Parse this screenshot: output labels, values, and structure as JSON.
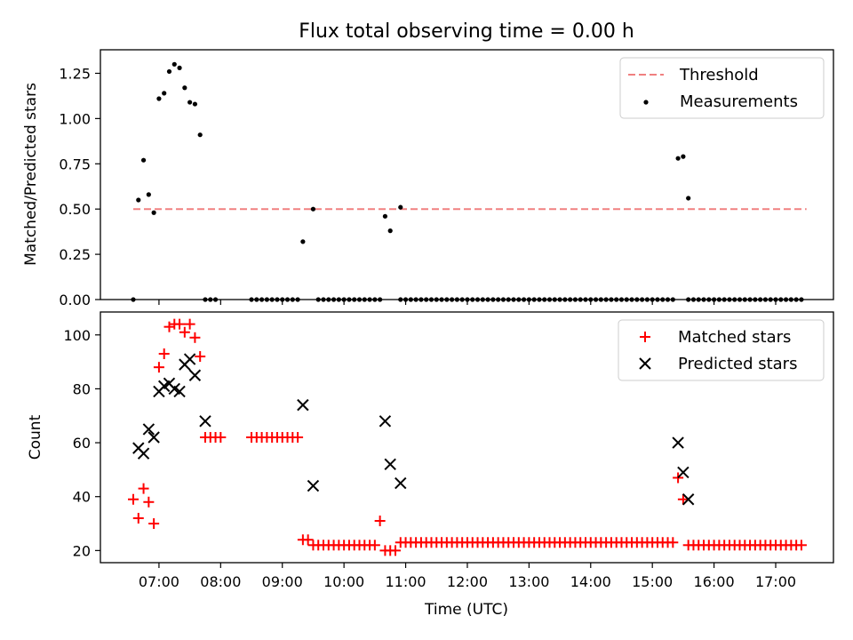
{
  "chart_data": [
    {
      "type": "scatter",
      "title": "Flux total observing time = 0.00 h",
      "xlabel": "",
      "ylabel": "Matched/Predicted stars",
      "ylim": [
        0,
        1.38
      ],
      "yticks": [
        "0.00",
        "0.25",
        "0.50",
        "0.75",
        "1.00",
        "1.25"
      ],
      "legend_position": "top-right",
      "threshold": {
        "name": "Threshold",
        "value": 0.5,
        "x_start": "06:35",
        "x_end": "17:30",
        "color": "#f08080"
      },
      "series": [
        {
          "name": "Measurements",
          "color": "#000000",
          "x": [
            "06:35",
            "06:40",
            "06:45",
            "06:50",
            "06:55",
            "07:00",
            "07:05",
            "07:10",
            "07:15",
            "07:20",
            "07:25",
            "07:30",
            "07:35",
            "07:40",
            "07:45",
            "07:50",
            "07:55",
            "09:20",
            "09:30",
            "10:40",
            "10:45",
            "10:55",
            "15:25",
            "15:30",
            "15:35"
          ],
          "y": [
            0.0,
            0.55,
            0.77,
            0.58,
            0.48,
            1.11,
            1.14,
            1.26,
            1.3,
            1.28,
            1.17,
            1.09,
            1.08,
            0.91,
            0.0,
            0.0,
            0.0,
            0.32,
            0.5,
            0.46,
            0.38,
            0.51,
            0.78,
            0.79,
            0.56
          ]
        }
      ],
      "zero_band": {
        "value": 0.0,
        "ranges": [
          [
            "08:30",
            "09:15"
          ],
          [
            "09:35",
            "10:05"
          ],
          [
            "10:10",
            "10:35"
          ],
          [
            "10:55",
            "13:15"
          ],
          [
            "13:20",
            "13:30"
          ],
          [
            "13:35",
            "15:20"
          ],
          [
            "15:35",
            "17:25"
          ]
        ],
        "step_minutes": 5
      }
    },
    {
      "type": "scatter",
      "title": "",
      "xlabel": "Time (UTC)",
      "ylabel": "Count",
      "ylim": [
        15.5,
        108.5
      ],
      "yticks": [
        "20",
        "40",
        "60",
        "80",
        "100"
      ],
      "xticks": [
        "07:00",
        "08:00",
        "09:00",
        "10:00",
        "11:00",
        "12:00",
        "13:00",
        "14:00",
        "15:00",
        "16:00",
        "17:00"
      ],
      "legend_position": "top-right",
      "series": [
        {
          "name": "Matched stars",
          "color": "#ff0000",
          "marker": "plus",
          "points": [
            [
              "06:35",
              39
            ],
            [
              "06:40",
              32
            ],
            [
              "06:45",
              43
            ],
            [
              "06:50",
              38
            ],
            [
              "06:55",
              30
            ],
            [
              "07:00",
              88
            ],
            [
              "07:05",
              93
            ],
            [
              "07:10",
              103
            ],
            [
              "07:15",
              104
            ],
            [
              "07:20",
              104
            ],
            [
              "07:25",
              101
            ],
            [
              "07:30",
              104
            ],
            [
              "07:35",
              99
            ],
            [
              "07:40",
              92
            ],
            [
              "07:45",
              62
            ],
            [
              "07:50",
              62
            ],
            [
              "07:55",
              62
            ],
            [
              "08:00",
              62
            ],
            [
              "08:30",
              62
            ],
            [
              "08:35",
              62
            ],
            [
              "08:40",
              62
            ],
            [
              "08:45",
              62
            ],
            [
              "08:50",
              62
            ],
            [
              "08:55",
              62
            ],
            [
              "09:00",
              62
            ],
            [
              "09:05",
              62
            ],
            [
              "09:10",
              62
            ],
            [
              "09:15",
              62
            ],
            [
              "09:20",
              24
            ],
            [
              "09:25",
              24
            ],
            [
              "09:30",
              22
            ],
            [
              "09:35",
              22
            ],
            [
              "09:40",
              22
            ],
            [
              "09:45",
              22
            ],
            [
              "09:50",
              22
            ],
            [
              "09:55",
              22
            ],
            [
              "10:00",
              22
            ],
            [
              "10:05",
              22
            ],
            [
              "10:10",
              22
            ],
            [
              "10:15",
              22
            ],
            [
              "10:20",
              22
            ],
            [
              "10:25",
              22
            ],
            [
              "10:30",
              22
            ],
            [
              "10:35",
              31
            ],
            [
              "10:40",
              20
            ],
            [
              "10:45",
              20
            ],
            [
              "10:50",
              20
            ],
            [
              "10:55",
              23
            ],
            [
              "11:00",
              23
            ],
            [
              "11:05",
              23
            ],
            [
              "11:10",
              23
            ],
            [
              "11:15",
              23
            ],
            [
              "11:20",
              23
            ],
            [
              "11:25",
              23
            ],
            [
              "11:30",
              23
            ],
            [
              "11:35",
              23
            ],
            [
              "11:40",
              23
            ],
            [
              "11:45",
              23
            ],
            [
              "11:50",
              23
            ],
            [
              "11:55",
              23
            ],
            [
              "12:00",
              23
            ],
            [
              "12:05",
              23
            ],
            [
              "12:10",
              23
            ],
            [
              "12:15",
              23
            ],
            [
              "12:20",
              23
            ],
            [
              "12:25",
              23
            ],
            [
              "12:30",
              23
            ],
            [
              "12:35",
              23
            ],
            [
              "12:40",
              23
            ],
            [
              "12:45",
              23
            ],
            [
              "12:50",
              23
            ],
            [
              "12:55",
              23
            ],
            [
              "13:00",
              23
            ],
            [
              "13:05",
              23
            ],
            [
              "13:10",
              23
            ],
            [
              "13:15",
              23
            ],
            [
              "13:20",
              23
            ],
            [
              "13:25",
              23
            ],
            [
              "13:30",
              23
            ],
            [
              "13:35",
              23
            ],
            [
              "13:40",
              23
            ],
            [
              "13:45",
              23
            ],
            [
              "13:50",
              23
            ],
            [
              "13:55",
              23
            ],
            [
              "14:00",
              23
            ],
            [
              "14:05",
              23
            ],
            [
              "14:10",
              23
            ],
            [
              "14:15",
              23
            ],
            [
              "14:20",
              23
            ],
            [
              "14:25",
              23
            ],
            [
              "14:30",
              23
            ],
            [
              "14:35",
              23
            ],
            [
              "14:40",
              23
            ],
            [
              "14:45",
              23
            ],
            [
              "14:50",
              23
            ],
            [
              "14:55",
              23
            ],
            [
              "15:00",
              23
            ],
            [
              "15:05",
              23
            ],
            [
              "15:10",
              23
            ],
            [
              "15:15",
              23
            ],
            [
              "15:20",
              23
            ],
            [
              "15:25",
              47
            ],
            [
              "15:30",
              39
            ],
            [
              "15:35",
              22
            ],
            [
              "15:40",
              22
            ],
            [
              "15:45",
              22
            ],
            [
              "15:50",
              22
            ],
            [
              "15:55",
              22
            ],
            [
              "16:00",
              22
            ],
            [
              "16:05",
              22
            ],
            [
              "16:10",
              22
            ],
            [
              "16:15",
              22
            ],
            [
              "16:20",
              22
            ],
            [
              "16:25",
              22
            ],
            [
              "16:30",
              22
            ],
            [
              "16:35",
              22
            ],
            [
              "16:40",
              22
            ],
            [
              "16:45",
              22
            ],
            [
              "16:50",
              22
            ],
            [
              "16:55",
              22
            ],
            [
              "17:00",
              22
            ],
            [
              "17:05",
              22
            ],
            [
              "17:10",
              22
            ],
            [
              "17:15",
              22
            ],
            [
              "17:20",
              22
            ],
            [
              "17:25",
              22
            ]
          ]
        },
        {
          "name": "Predicted stars",
          "color": "#000000",
          "marker": "x",
          "points": [
            [
              "06:40",
              58
            ],
            [
              "06:45",
              56
            ],
            [
              "06:50",
              65
            ],
            [
              "06:55",
              62
            ],
            [
              "07:00",
              79
            ],
            [
              "07:05",
              81
            ],
            [
              "07:10",
              82
            ],
            [
              "07:15",
              80
            ],
            [
              "07:20",
              79
            ],
            [
              "07:25",
              89
            ],
            [
              "07:30",
              91
            ],
            [
              "07:35",
              85
            ],
            [
              "07:45",
              68
            ],
            [
              "09:20",
              74
            ],
            [
              "09:30",
              44
            ],
            [
              "10:40",
              68
            ],
            [
              "10:45",
              52
            ],
            [
              "10:55",
              45
            ],
            [
              "15:25",
              60
            ],
            [
              "15:30",
              49
            ],
            [
              "15:35",
              39
            ]
          ]
        }
      ]
    }
  ]
}
